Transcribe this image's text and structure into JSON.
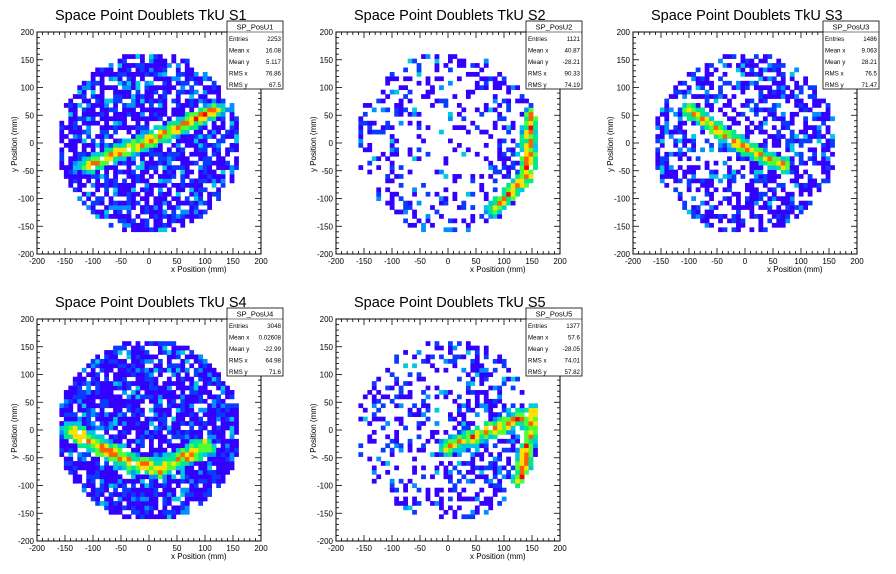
{
  "chart_data": [
    {
      "type": "heatmap",
      "title": "Space Point Doublets TkU S1",
      "xlabel": "x Position (mm)",
      "ylabel": "y Position (mm)",
      "xlim": [
        -200,
        200
      ],
      "ylim": [
        -200,
        200
      ],
      "xticks": [
        "-200",
        "-150",
        "-100",
        "-50",
        "0",
        "50",
        "100",
        "150",
        "200"
      ],
      "yticks": [
        "-200",
        "-150",
        "-100",
        "-50",
        "0",
        "50",
        "100",
        "150",
        "200"
      ],
      "grid": false,
      "stats": {
        "name": "SP_PosU1",
        "rows": [
          {
            "label": "Entries",
            "value": "2253"
          },
          {
            "label": "Mean x",
            "value": "16.08"
          },
          {
            "label": "Mean y",
            "value": "5.117"
          },
          {
            "label": "RMS x",
            "value": "76.86"
          },
          {
            "label": "RMS y",
            "value": "67.5"
          }
        ]
      },
      "pattern": {
        "seed": 11,
        "band": [
          [
            -110,
            -40
          ],
          [
            0,
            5
          ],
          [
            120,
            60
          ]
        ],
        "bandWidth": 16,
        "ring": false,
        "density": 0.72,
        "sparseBias": 0.0
      }
    },
    {
      "type": "heatmap",
      "title": "Space Point Doublets TkU S2",
      "xlabel": "x Position (mm)",
      "ylabel": "y Position (mm)",
      "xlim": [
        -200,
        200
      ],
      "ylim": [
        -200,
        200
      ],
      "xticks": [
        "-200",
        "-150",
        "-100",
        "-50",
        "0",
        "50",
        "100",
        "150",
        "200"
      ],
      "yticks": [
        "-200",
        "-150",
        "-100",
        "-50",
        "0",
        "50",
        "100",
        "150",
        "200"
      ],
      "grid": false,
      "stats": {
        "name": "SP_PosU2",
        "rows": [
          {
            "label": "Entries",
            "value": "1121"
          },
          {
            "label": "Mean x",
            "value": "40.87"
          },
          {
            "label": "Mean y",
            "value": "-28.21"
          },
          {
            "label": "RMS x",
            "value": "90.33"
          },
          {
            "label": "RMS y",
            "value": "74.19"
          }
        ]
      },
      "pattern": {
        "seed": 23,
        "band": [
          [
            150,
            50
          ],
          [
            140,
            -60
          ],
          [
            80,
            -120
          ]
        ],
        "bandWidth": 16,
        "ring": true,
        "density": 0.42,
        "sparseBias": 0.5
      }
    },
    {
      "type": "heatmap",
      "title": "Space Point Doublets TkU S3",
      "xlabel": "x Position (mm)",
      "ylabel": "y Position (mm)",
      "xlim": [
        -200,
        200
      ],
      "ylim": [
        -200,
        200
      ],
      "xticks": [
        "-200",
        "-150",
        "-100",
        "-50",
        "0",
        "50",
        "100",
        "150",
        "200"
      ],
      "yticks": [
        "-200",
        "-150",
        "-100",
        "-50",
        "0",
        "50",
        "100",
        "150",
        "200"
      ],
      "grid": false,
      "stats": {
        "name": "SP_PosU3",
        "rows": [
          {
            "label": "Entries",
            "value": "1486"
          },
          {
            "label": "Mean x",
            "value": "9.063"
          },
          {
            "label": "Mean y",
            "value": "28.21"
          },
          {
            "label": "RMS x",
            "value": "76.5"
          },
          {
            "label": "RMS y",
            "value": "71.47"
          }
        ]
      },
      "pattern": {
        "seed": 37,
        "band": [
          [
            -100,
            60
          ],
          [
            0,
            -10
          ],
          [
            70,
            -40
          ]
        ],
        "bandWidth": 14,
        "ring": false,
        "density": 0.55,
        "sparseBias": 0.2
      }
    },
    {
      "type": "heatmap",
      "title": "Space Point Doublets TkU S4",
      "xlabel": "x Position (mm)",
      "ylabel": "y Position (mm)",
      "xlim": [
        -200,
        200
      ],
      "ylim": [
        -200,
        200
      ],
      "xticks": [
        "-200",
        "-150",
        "-100",
        "-50",
        "0",
        "50",
        "100",
        "150",
        "200"
      ],
      "yticks": [
        "-200",
        "-150",
        "-100",
        "-50",
        "0",
        "50",
        "100",
        "150",
        "200"
      ],
      "grid": false,
      "stats": {
        "name": "SP_PosU4",
        "rows": [
          {
            "label": "Entries",
            "value": "3048"
          },
          {
            "label": "Mean x",
            "value": "0.02608"
          },
          {
            "label": "Mean y",
            "value": "-22.99"
          },
          {
            "label": "RMS x",
            "value": "64.98"
          },
          {
            "label": "RMS y",
            "value": "71.6"
          }
        ]
      },
      "pattern": {
        "seed": 53,
        "band": [
          [
            -140,
            0
          ],
          [
            -30,
            -60
          ],
          [
            20,
            -70
          ],
          [
            100,
            -30
          ]
        ],
        "bandWidth": 18,
        "ring": false,
        "density": 0.8,
        "sparseBias": 0.0
      }
    },
    {
      "type": "heatmap",
      "title": "Space Point Doublets TkU S5",
      "xlabel": "x Position (mm)",
      "ylabel": "y Position (mm)",
      "xlim": [
        -200,
        200
      ],
      "ylim": [
        -200,
        200
      ],
      "xticks": [
        "-200",
        "-150",
        "-100",
        "-50",
        "0",
        "50",
        "100",
        "150",
        "200"
      ],
      "yticks": [
        "-200",
        "-150",
        "-100",
        "-50",
        "0",
        "50",
        "100",
        "150",
        "200"
      ],
      "grid": false,
      "stats": {
        "name": "SP_PosU5",
        "rows": [
          {
            "label": "Entries",
            "value": "1377"
          },
          {
            "label": "Mean x",
            "value": "57.6"
          },
          {
            "label": "Mean y",
            "value": "-28.05"
          },
          {
            "label": "RMS x",
            "value": "74.01"
          },
          {
            "label": "RMS y",
            "value": "57.82"
          }
        ]
      },
      "pattern": {
        "seed": 71,
        "band": [
          [
            0,
            -30
          ],
          [
            100,
            10
          ],
          [
            150,
            30
          ],
          [
            130,
            -90
          ]
        ],
        "bandWidth": 16,
        "ring": false,
        "density": 0.45,
        "sparseBias": 0.55
      }
    }
  ],
  "colors": {
    "palette": [
      "#3300ff",
      "#0a3bff",
      "#0090ff",
      "#00c8e0",
      "#00e890",
      "#50ff30",
      "#ffe000",
      "#ff6000",
      "#ff0000"
    ],
    "frame": "#000000",
    "background": "#ffffff"
  }
}
